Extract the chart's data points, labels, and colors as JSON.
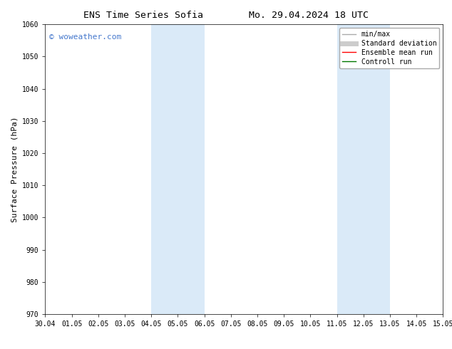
{
  "title_left": "ENS Time Series Sofia",
  "title_right": "Mo. 29.04.2024 18 UTC",
  "ylabel": "Surface Pressure (hPa)",
  "ylim": [
    970,
    1060
  ],
  "yticks": [
    970,
    980,
    990,
    1000,
    1010,
    1020,
    1030,
    1040,
    1050,
    1060
  ],
  "xtick_labels": [
    "30.04",
    "01.05",
    "02.05",
    "03.05",
    "04.05",
    "05.05",
    "06.05",
    "07.05",
    "08.05",
    "09.05",
    "10.05",
    "11.05",
    "12.05",
    "13.05",
    "14.05",
    "15.05"
  ],
  "xtick_positions": [
    0,
    1,
    2,
    3,
    4,
    5,
    6,
    7,
    8,
    9,
    10,
    11,
    12,
    13,
    14,
    15
  ],
  "xlim": [
    0,
    15
  ],
  "background_color": "#ffffff",
  "plot_bg_color": "#ffffff",
  "shaded_regions": [
    {
      "x_start": 4.0,
      "x_end": 6.0,
      "color": "#daeaf8"
    },
    {
      "x_start": 11.0,
      "x_end": 13.0,
      "color": "#daeaf8"
    }
  ],
  "watermark_text": "© woweather.com",
  "watermark_color": "#4477cc",
  "legend_entries": [
    {
      "label": "min/max",
      "color": "#aaaaaa",
      "lw": 1.0,
      "style": "-"
    },
    {
      "label": "Standard deviation",
      "color": "#cccccc",
      "lw": 5,
      "style": "-"
    },
    {
      "label": "Ensemble mean run",
      "color": "#ff0000",
      "lw": 1.0,
      "style": "-"
    },
    {
      "label": "Controll run",
      "color": "#007700",
      "lw": 1.0,
      "style": "-"
    }
  ],
  "title_fontsize": 9.5,
  "tick_fontsize": 7,
  "ylabel_fontsize": 8,
  "watermark_fontsize": 8,
  "legend_fontsize": 7
}
